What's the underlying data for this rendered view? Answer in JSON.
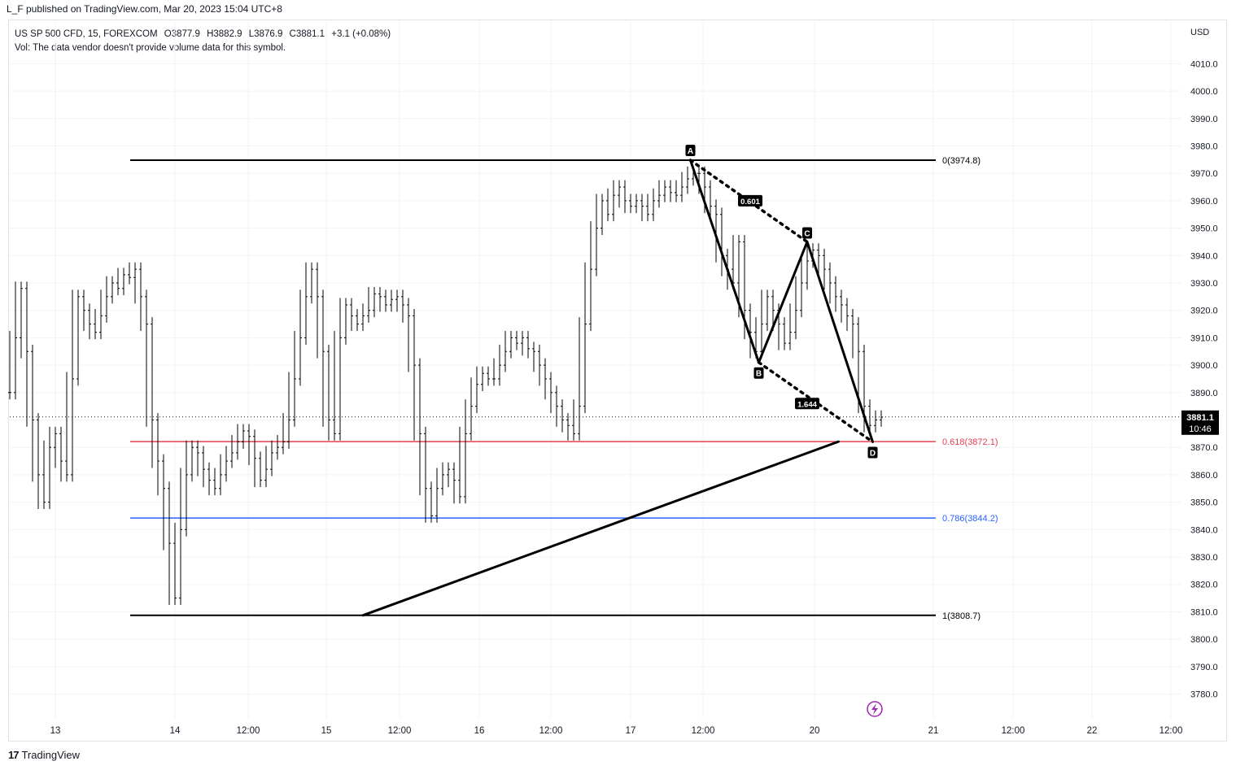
{
  "header": {
    "publisher": "L_F published on TradingView.com, Mar 20, 2023 15:04 UTC+8"
  },
  "legend": {
    "symbol": "US SP 500 CFD, 15, FOREXCOM",
    "open": "O3877.9",
    "high": "H3882.9",
    "low": "L3876.9",
    "close": "C3881.1",
    "change": "+3.1 (+0.08%)",
    "vol_note": "Vol: The data vendor doesn't provide volume data for this symbol."
  },
  "currency": "USD",
  "footer": {
    "brand": "TradingView",
    "logo_icon": "tradingview-logo-icon"
  },
  "chart_data": {
    "type": "line",
    "title": "",
    "ylim": [
      3776,
      4020
    ],
    "y_ticks": [
      "4010.0",
      "4000.0",
      "3990.0",
      "3980.0",
      "3970.0",
      "3960.0",
      "3950.0",
      "3940.0",
      "3930.0",
      "3920.0",
      "3910.0",
      "3900.0",
      "3890.0",
      "3880.0",
      "3870.0",
      "3860.0",
      "3850.0",
      "3840.0",
      "3830.0",
      "3820.0",
      "3810.0",
      "3800.0",
      "3790.0",
      "3780.0"
    ],
    "x_ticks": [
      "13",
      "14",
      "12:00",
      "15",
      "12:00",
      "16",
      "12:00",
      "17",
      "12:00",
      "20",
      "21",
      "12:00",
      "22",
      "12:00"
    ],
    "price_series": [
      [
        0,
        3890
      ],
      [
        1,
        3910
      ],
      [
        2,
        3928
      ],
      [
        3,
        3905
      ],
      [
        4,
        3880
      ],
      [
        5,
        3860
      ],
      [
        6,
        3850
      ],
      [
        7,
        3870
      ],
      [
        8,
        3875
      ],
      [
        9,
        3865
      ],
      [
        10,
        3860
      ],
      [
        11,
        3895
      ],
      [
        12,
        3925
      ],
      [
        13,
        3920
      ],
      [
        14,
        3915
      ],
      [
        15,
        3912
      ],
      [
        16,
        3918
      ],
      [
        17,
        3925
      ],
      [
        18,
        3930
      ],
      [
        19,
        3928
      ],
      [
        20,
        3933
      ],
      [
        21,
        3932
      ],
      [
        22,
        3935
      ],
      [
        23,
        3925
      ],
      [
        24,
        3915
      ],
      [
        25,
        3880
      ],
      [
        26,
        3865
      ],
      [
        27,
        3855
      ],
      [
        28,
        3835
      ],
      [
        29,
        3815
      ],
      [
        30,
        3840
      ],
      [
        31,
        3860
      ],
      [
        32,
        3870
      ],
      [
        33,
        3868
      ],
      [
        34,
        3862
      ],
      [
        35,
        3858
      ],
      [
        36,
        3855
      ],
      [
        37,
        3860
      ],
      [
        38,
        3865
      ],
      [
        39,
        3868
      ],
      [
        40,
        3872
      ],
      [
        41,
        3876
      ],
      [
        42,
        3874
      ],
      [
        43,
        3866
      ],
      [
        44,
        3858
      ],
      [
        45,
        3862
      ],
      [
        46,
        3868
      ],
      [
        47,
        3870
      ],
      [
        48,
        3872
      ],
      [
        49,
        3880
      ],
      [
        50,
        3895
      ],
      [
        51,
        3910
      ],
      [
        52,
        3925
      ],
      [
        53,
        3935
      ],
      [
        54,
        3925
      ],
      [
        55,
        3905
      ],
      [
        56,
        3880
      ],
      [
        57,
        3875
      ],
      [
        58,
        3910
      ],
      [
        59,
        3922
      ],
      [
        60,
        3918
      ],
      [
        61,
        3915
      ],
      [
        62,
        3918
      ],
      [
        63,
        3920
      ],
      [
        64,
        3926
      ],
      [
        65,
        3925
      ],
      [
        66,
        3922
      ],
      [
        67,
        3924
      ],
      [
        68,
        3925
      ],
      [
        69,
        3922
      ],
      [
        70,
        3918
      ],
      [
        71,
        3900
      ],
      [
        72,
        3875
      ],
      [
        73,
        3855
      ],
      [
        74,
        3845
      ],
      [
        75,
        3855
      ],
      [
        76,
        3860
      ],
      [
        77,
        3862
      ],
      [
        78,
        3858
      ],
      [
        79,
        3852
      ],
      [
        80,
        3875
      ],
      [
        81,
        3885
      ],
      [
        82,
        3893
      ],
      [
        83,
        3897
      ],
      [
        84,
        3895
      ],
      [
        85,
        3895
      ],
      [
        86,
        3900
      ],
      [
        87,
        3905
      ],
      [
        88,
        3910
      ],
      [
        89,
        3908
      ],
      [
        90,
        3910
      ],
      [
        91,
        3906
      ],
      [
        92,
        3905
      ],
      [
        93,
        3900
      ],
      [
        94,
        3895
      ],
      [
        95,
        3890
      ],
      [
        96,
        3885
      ],
      [
        97,
        3880
      ],
      [
        98,
        3878
      ],
      [
        99,
        3875
      ],
      [
        100,
        3885
      ],
      [
        101,
        3915
      ],
      [
        102,
        3935
      ],
      [
        103,
        3950
      ],
      [
        104,
        3960
      ],
      [
        105,
        3955
      ],
      [
        106,
        3962
      ],
      [
        107,
        3965
      ],
      [
        108,
        3960
      ],
      [
        109,
        3958
      ],
      [
        110,
        3960
      ],
      [
        111,
        3958
      ],
      [
        112,
        3955
      ],
      [
        113,
        3960
      ],
      [
        114,
        3962
      ],
      [
        115,
        3965
      ],
      [
        116,
        3963
      ],
      [
        117,
        3962
      ],
      [
        118,
        3965
      ],
      [
        119,
        3968
      ],
      [
        120,
        3970
      ],
      [
        121,
        3970
      ],
      [
        122,
        3965
      ],
      [
        123,
        3958
      ],
      [
        124,
        3955
      ],
      [
        125,
        3940
      ],
      [
        126,
        3935
      ],
      [
        127,
        3930
      ],
      [
        128,
        3945
      ],
      [
        129,
        3920
      ],
      [
        130,
        3912
      ],
      [
        131,
        3905
      ],
      [
        132,
        3915
      ],
      [
        133,
        3925
      ],
      [
        134,
        3920
      ],
      [
        135,
        3915
      ],
      [
        136,
        3908
      ],
      [
        137,
        3912
      ],
      [
        138,
        3920
      ],
      [
        139,
        3930
      ],
      [
        140,
        3938
      ],
      [
        141,
        3942
      ],
      [
        142,
        3940
      ],
      [
        143,
        3935
      ],
      [
        144,
        3930
      ],
      [
        145,
        3925
      ],
      [
        146,
        3922
      ],
      [
        147,
        3918
      ],
      [
        148,
        3915
      ],
      [
        149,
        3905
      ],
      [
        150,
        3885
      ],
      [
        151,
        3878
      ],
      [
        152,
        3880
      ],
      [
        153,
        3881
      ]
    ],
    "series": [
      {
        "name": "0(3974.8)",
        "level": 3974.8,
        "color": "#000000"
      },
      {
        "name": "0.618(3872.1)",
        "level": 3872.1,
        "color": "#e53e51"
      },
      {
        "name": "0.786(3844.2)",
        "level": 3844.2,
        "color": "#2962ff"
      },
      {
        "name": "1(3808.7)",
        "level": 3808.7,
        "color": "#000000"
      }
    ],
    "fib_levels": [
      {
        "label": "0(3974.8)",
        "value": 3974.8,
        "color": "#000000"
      },
      {
        "label": "0.618(3872.1)",
        "value": 3872.1,
        "color": "#e53e51"
      },
      {
        "label": "0.786(3844.2)",
        "value": 3844.2,
        "color": "#2962ff"
      },
      {
        "label": "1(3808.7)",
        "value": 3808.7,
        "color": "#000000"
      }
    ],
    "pattern_points": [
      {
        "label": "A",
        "x": 119.5,
        "y": 3974.8
      },
      {
        "label": "B",
        "x": 131.5,
        "y": 3901
      },
      {
        "label": "C",
        "x": 140,
        "y": 3945
      },
      {
        "label": "D",
        "x": 151.5,
        "y": 3872
      }
    ],
    "ratios": [
      {
        "label": "0.601",
        "x": 130,
        "y": 3960
      },
      {
        "label": "1.644",
        "x": 140,
        "y": 3886
      }
    ],
    "trendline": {
      "from": {
        "x": 62,
        "y": 3808.7
      },
      "to": {
        "x": 145.5,
        "y": 3872.1
      }
    },
    "last_price": {
      "value": "3881.1",
      "countdown": "10:46",
      "level": 3881.1
    },
    "grid": true,
    "legend_position": "top-left"
  }
}
